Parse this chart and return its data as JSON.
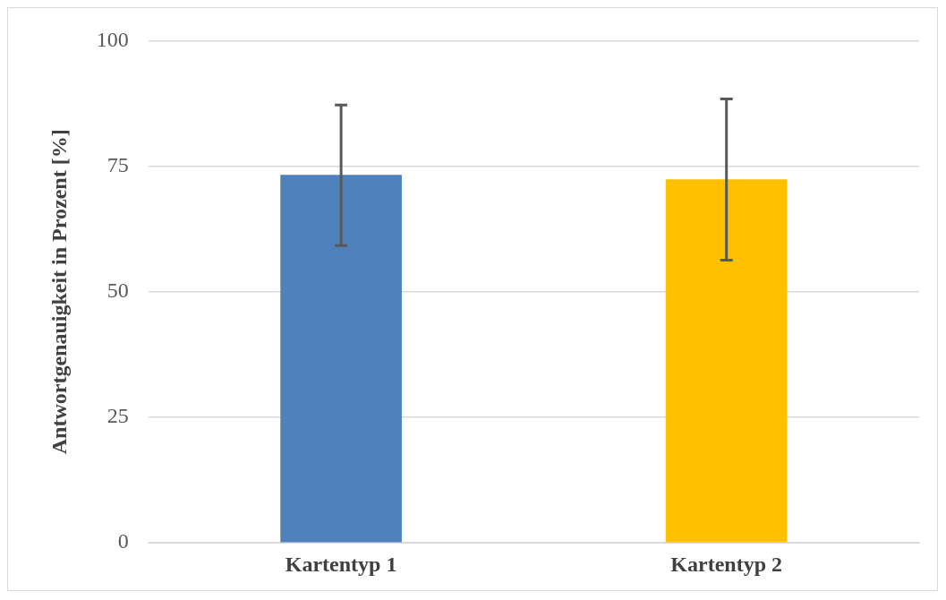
{
  "chart_data": {
    "type": "bar",
    "ylabel": "Antwortgenauigkeit in Prozent [%]",
    "categories": [
      "Kartentyp 1",
      "Kartentyp 2"
    ],
    "values": [
      73.3,
      72.4
    ],
    "colors": [
      "#4f81bd",
      "#ffc000"
    ],
    "errors": [
      [
        59.2,
        87.2
      ],
      [
        56.3,
        88.4
      ]
    ],
    "ylim": [
      0,
      100
    ],
    "yticks": [
      0,
      25,
      50,
      75,
      100
    ],
    "grid": "y",
    "legend": false
  }
}
